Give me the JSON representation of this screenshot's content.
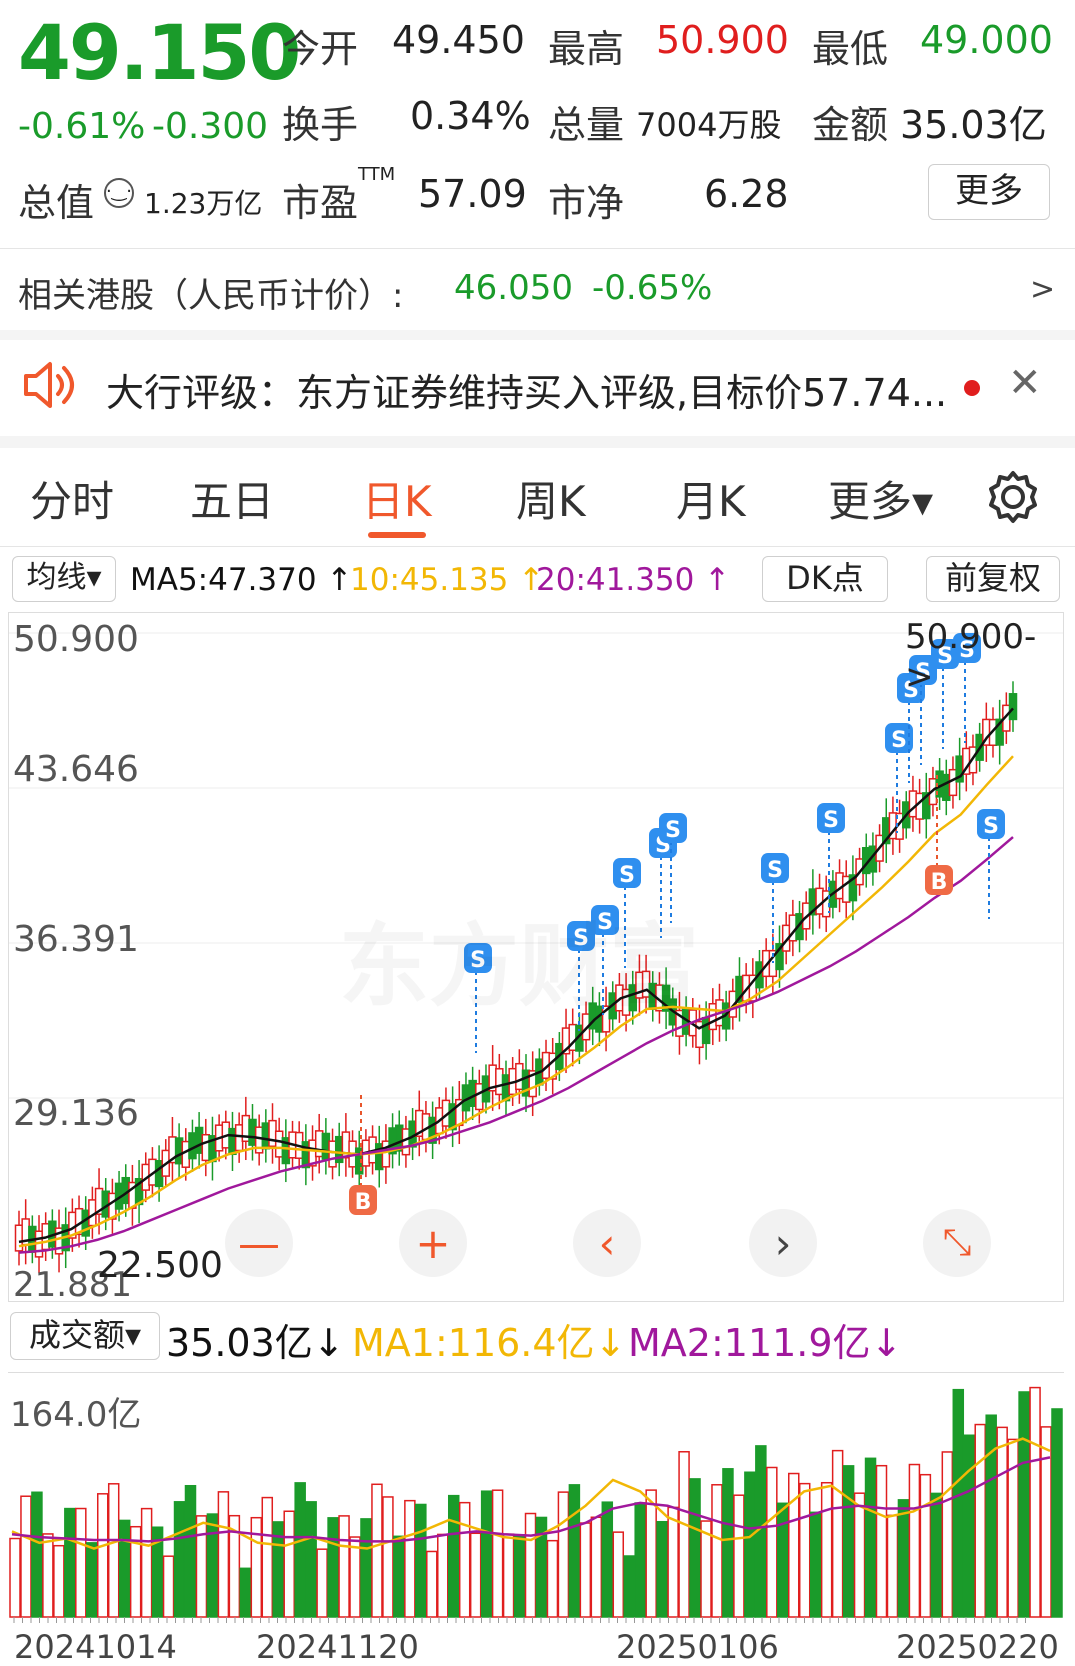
{
  "quote": {
    "price": "49.150",
    "change_pct": "-0.61%",
    "change": "-0.300",
    "open_label": "今开",
    "open": "49.450",
    "high_label": "最高",
    "high": "50.900",
    "low_label": "最低",
    "low": "49.000",
    "turnover_label": "换手",
    "turnover": "0.34%",
    "volume_label": "总量",
    "volume": "7004万股",
    "amount_label": "金额",
    "amount": "35.03亿",
    "mktcap_label": "总值",
    "mktcap": "1.23万亿",
    "pe_label": "市盈",
    "pe_sup": "TTM",
    "pe": "57.09",
    "pb_label": "市净",
    "pb": "6.28",
    "more_label": "更多"
  },
  "hk": {
    "label": "相关港股（人民币计价）:",
    "price": "46.050",
    "change_pct": "-0.65%",
    "arrow": ">"
  },
  "rating": {
    "text": "大行评级：东方证券维持买入评级,目标价57.74...",
    "close": "✕"
  },
  "tabs": [
    {
      "label": "分时"
    },
    {
      "label": "五日"
    },
    {
      "label": "日K"
    },
    {
      "label": "周K"
    },
    {
      "label": "月K"
    },
    {
      "label": "更多▾"
    }
  ],
  "ma_bar": {
    "selector": "均线▾",
    "ma5": "MA5:47.370 ↑",
    "ma10": "10:45.135 ↑",
    "ma20": "20:41.350 ↑",
    "dk": "DK点",
    "adjust": "前复权"
  },
  "chart_axis": {
    "y1": "50.900",
    "y2": "43.646",
    "y3": "36.391",
    "y4": "29.136",
    "low_marker": "22.500",
    "low_overlap": "21.881",
    "high_marker": "50.900->"
  },
  "signals": {
    "s": "S",
    "b": "B"
  },
  "volume_bar": {
    "selector": "成交额▾",
    "value": "35.03亿↓",
    "ma1": "MA1:116.4亿↓",
    "ma2": "MA2:111.9亿↓",
    "top": "164.0亿"
  },
  "dates": {
    "d1": "20241014",
    "d2": "20241120",
    "d3": "20250106",
    "d4": "20250220"
  },
  "watermark": "东方财富",
  "colors": {
    "up": "#e01e1e",
    "down": "#1a9b2a",
    "accent": "#f0582c",
    "ma5": "#111111",
    "ma10": "#f2b705",
    "ma20": "#a0189c"
  },
  "chart_data": {
    "type": "candlestick",
    "ylim": [
      21.881,
      50.9
    ],
    "ma_lines": [
      {
        "name": "MA5",
        "values": [
          22.4,
          22.6,
          23.0,
          23.8,
          24.6,
          25.5,
          26.4,
          27.0,
          27.4,
          27.3,
          27.1,
          26.8,
          26.6,
          26.5,
          26.8,
          27.3,
          28.0,
          29.0,
          29.6,
          29.9,
          30.4,
          31.5,
          32.8,
          33.8,
          34.2,
          33.2,
          32.4,
          33.0,
          34.5,
          36.0,
          37.5,
          38.6,
          39.5,
          41.0,
          42.5,
          43.6,
          44.2,
          46.0,
          47.37
        ]
      },
      {
        "name": "MA10",
        "values": [
          22.2,
          22.4,
          22.7,
          23.2,
          23.8,
          24.5,
          25.3,
          26.0,
          26.5,
          26.8,
          26.8,
          26.7,
          26.6,
          26.5,
          26.6,
          26.9,
          27.4,
          28.0,
          28.7,
          29.3,
          29.8,
          30.6,
          31.5,
          32.5,
          33.3,
          33.4,
          33.3,
          33.2,
          33.8,
          34.6,
          35.7,
          36.8,
          37.9,
          39.0,
          40.2,
          41.5,
          42.4,
          43.8,
          45.135
        ]
      },
      {
        "name": "MA20",
        "values": [
          21.9,
          22.0,
          22.2,
          22.5,
          22.9,
          23.4,
          23.9,
          24.4,
          24.9,
          25.3,
          25.7,
          26.0,
          26.3,
          26.5,
          26.7,
          26.9,
          27.2,
          27.6,
          28.0,
          28.5,
          29.0,
          29.6,
          30.3,
          31.0,
          31.7,
          32.3,
          32.8,
          33.2,
          33.6,
          34.1,
          34.7,
          35.3,
          36.0,
          36.8,
          37.6,
          38.5,
          39.3,
          40.3,
          41.35
        ]
      }
    ],
    "volume_ma": [
      {
        "name": "MA1",
        "values": [
          60,
          52,
          55,
          48,
          54,
          50,
          58,
          66,
          62,
          52,
          50,
          56,
          50,
          48,
          54,
          60,
          68,
          62,
          56,
          54,
          64,
          78,
          96,
          88,
          70,
          62,
          54,
          56,
          72,
          88,
          92,
          78,
          70,
          74,
          84,
          102,
          118,
          125,
          116.4
        ]
      },
      {
        "name": "MA2",
        "values": [
          58,
          56,
          55,
          54,
          54,
          53,
          55,
          58,
          60,
          58,
          56,
          56,
          54,
          53,
          53,
          55,
          58,
          60,
          58,
          57,
          60,
          66,
          76,
          80,
          78,
          72,
          66,
          62,
          64,
          70,
          76,
          78,
          76,
          76,
          80,
          88,
          98,
          108,
          111.9
        ]
      }
    ]
  }
}
